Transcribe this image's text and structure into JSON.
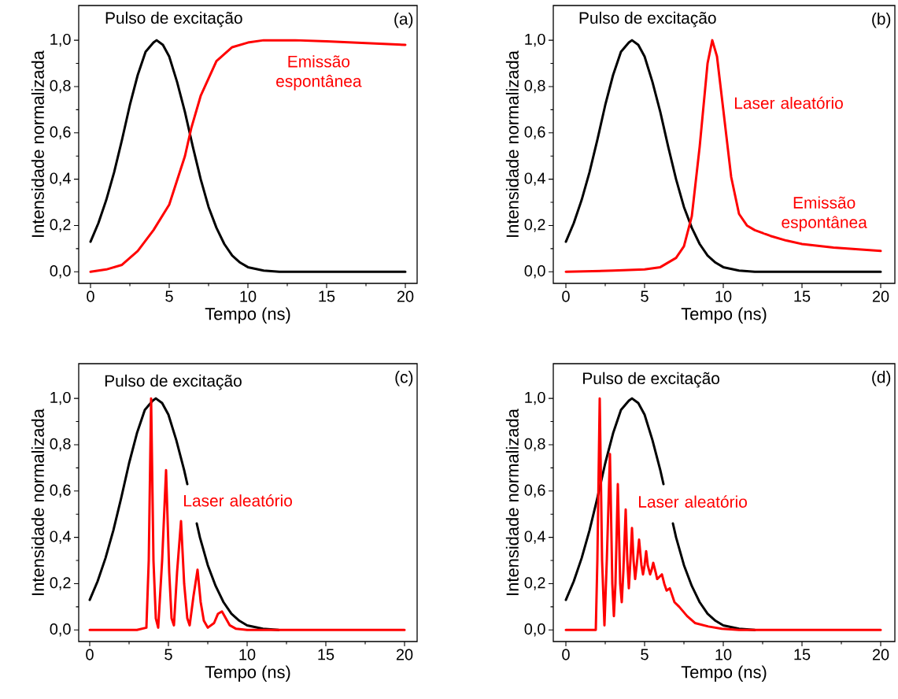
{
  "chart_data": [
    {
      "type": "line",
      "xlabel": "Tempo (ns)",
      "ylabel": "Intensidade normalizada",
      "xlim": [
        -0.75,
        20.75
      ],
      "ylim": [
        -0.05,
        1.15
      ],
      "xticks": [
        0,
        5,
        10,
        15,
        20
      ],
      "yticks": [
        {
          "value": 0,
          "label": "0,0"
        },
        {
          "value": 0.2,
          "label": "0,2"
        },
        {
          "value": 0.4,
          "label": "0,4"
        },
        {
          "value": 0.6,
          "label": "0,6"
        },
        {
          "value": 0.8,
          "label": "0,8"
        },
        {
          "value": 1.0,
          "label": "1,0"
        }
      ],
      "annotations": [
        "Pulso de excitação",
        "Emissão espontânea",
        "(a)"
      ],
      "series": [
        {
          "color": "#000000",
          "x": [
            0,
            0.5,
            1,
            1.5,
            2,
            2.5,
            3,
            3.5,
            4,
            4.2,
            4.6,
            5,
            5.5,
            6,
            6.5,
            7,
            7.5,
            8,
            8.5,
            9,
            9.5,
            10,
            11,
            12,
            14,
            17,
            20
          ],
          "values": [
            0.13,
            0.21,
            0.31,
            0.43,
            0.57,
            0.72,
            0.85,
            0.95,
            0.99,
            1.0,
            0.98,
            0.93,
            0.82,
            0.69,
            0.54,
            0.4,
            0.28,
            0.19,
            0.12,
            0.07,
            0.04,
            0.02,
            0.005,
            0,
            0,
            0,
            0
          ]
        },
        {
          "color": "#ff0000",
          "x": [
            0,
            1,
            2,
            3,
            4,
            5,
            6,
            6.4,
            7,
            8,
            9,
            10,
            11,
            13,
            15,
            20
          ],
          "values": [
            0,
            0.01,
            0.03,
            0.09,
            0.18,
            0.29,
            0.5,
            0.62,
            0.76,
            0.91,
            0.97,
            0.99,
            1.0,
            1.0,
            0.995,
            0.98
          ]
        }
      ]
    },
    {
      "type": "line",
      "xlabel": "Tempo (ns)",
      "ylabel": "Intensidade normalizada",
      "xlim": [
        -0.8,
        20.9
      ],
      "ylim": [
        -0.05,
        1.15
      ],
      "xticks": [
        0,
        5,
        10,
        15,
        20
      ],
      "yticks": [
        {
          "value": 0,
          "label": "0,0"
        },
        {
          "value": 0.2,
          "label": "0,2"
        },
        {
          "value": 0.4,
          "label": "0,4"
        },
        {
          "value": 0.6,
          "label": "0,6"
        },
        {
          "value": 0.8,
          "label": "0,8"
        },
        {
          "value": 1.0,
          "label": "1,0"
        }
      ],
      "annotations": [
        "Pulso de excitação",
        "Laser aleatório",
        "Emissão espontânea",
        "(b)"
      ],
      "series": [
        {
          "color": "#000000",
          "x": [
            0,
            0.5,
            1,
            1.5,
            2,
            2.5,
            3,
            3.5,
            4,
            4.2,
            4.6,
            5,
            5.5,
            6,
            6.5,
            7,
            7.5,
            8,
            8.5,
            9,
            9.5,
            10,
            11,
            12,
            14,
            17,
            20
          ],
          "values": [
            0.13,
            0.21,
            0.31,
            0.43,
            0.57,
            0.72,
            0.85,
            0.95,
            0.99,
            1.0,
            0.98,
            0.93,
            0.82,
            0.69,
            0.54,
            0.4,
            0.28,
            0.19,
            0.12,
            0.07,
            0.04,
            0.02,
            0.005,
            0,
            0,
            0,
            0
          ]
        },
        {
          "color": "#ff0000",
          "x": [
            0,
            3,
            5,
            6,
            7,
            7.5,
            8,
            8.5,
            9,
            9.3,
            9.6,
            10,
            10.5,
            11,
            11.5,
            12,
            13,
            14,
            15,
            17,
            20
          ],
          "values": [
            0,
            0.005,
            0.01,
            0.02,
            0.06,
            0.11,
            0.24,
            0.54,
            0.9,
            1.0,
            0.93,
            0.7,
            0.41,
            0.25,
            0.2,
            0.18,
            0.155,
            0.135,
            0.12,
            0.105,
            0.09
          ]
        }
      ]
    },
    {
      "type": "line",
      "xlabel": "Tempo (ns)",
      "ylabel": "Intensidade normalizada",
      "xlim": [
        -0.7,
        20.8
      ],
      "ylim": [
        -0.05,
        1.15
      ],
      "xticks": [
        0,
        5,
        10,
        15,
        20
      ],
      "yticks": [
        {
          "value": 0,
          "label": "0,0"
        },
        {
          "value": 0.2,
          "label": "0,2"
        },
        {
          "value": 0.4,
          "label": "0,4"
        },
        {
          "value": 0.6,
          "label": "0,6"
        },
        {
          "value": 0.8,
          "label": "0,8"
        },
        {
          "value": 1.0,
          "label": "1,0"
        }
      ],
      "annotations": [
        "Pulso de excitação",
        "Laser aleatório",
        "(c)"
      ],
      "series": [
        {
          "color": "#000000",
          "x": [
            0,
            0.5,
            1,
            1.5,
            2,
            2.5,
            3,
            3.5,
            4,
            4.2,
            4.6,
            5,
            5.5,
            6,
            6.2,
            6.5,
            6.8,
            7,
            7.5,
            8,
            8.5,
            9,
            9.5,
            10,
            11,
            12
          ],
          "values": [
            0.13,
            0.21,
            0.31,
            0.43,
            0.57,
            0.72,
            0.85,
            0.95,
            0.99,
            1.0,
            0.98,
            0.93,
            0.82,
            0.69,
            0.63,
            null,
            0.46,
            0.4,
            0.28,
            0.19,
            0.12,
            0.07,
            0.04,
            0.02,
            0.005,
            0
          ]
        },
        {
          "color": "#ff0000",
          "x": [
            0,
            3.0,
            3.6,
            3.75,
            3.9,
            4.05,
            4.2,
            4.35,
            4.6,
            4.85,
            5.05,
            5.2,
            5.35,
            5.55,
            5.8,
            6.0,
            6.2,
            6.35,
            6.6,
            6.85,
            7.05,
            7.25,
            7.5,
            7.9,
            8.15,
            8.4,
            8.65,
            8.9,
            9.3,
            10,
            20
          ],
          "values": [
            0,
            0,
            0.01,
            0.3,
            1.0,
            0.3,
            0.05,
            0.01,
            0.3,
            0.69,
            0.25,
            0.05,
            0.02,
            0.25,
            0.47,
            0.2,
            0.05,
            0.02,
            0.15,
            0.26,
            0.12,
            0.04,
            0.01,
            0.03,
            0.07,
            0.08,
            0.05,
            0.02,
            0.005,
            0,
            0
          ]
        }
      ]
    },
    {
      "type": "line",
      "xlabel": "Tempo (ns)",
      "ylabel": "Intensidade normalizada",
      "xlim": [
        -0.8,
        20.9
      ],
      "ylim": [
        -0.05,
        1.15
      ],
      "xticks": [
        0,
        5,
        10,
        15,
        20
      ],
      "yticks": [
        {
          "value": 0,
          "label": "0,0"
        },
        {
          "value": 0.2,
          "label": "0,2"
        },
        {
          "value": 0.4,
          "label": "0,4"
        },
        {
          "value": 0.6,
          "label": "0,6"
        },
        {
          "value": 0.8,
          "label": "0,8"
        },
        {
          "value": 1.0,
          "label": "1,0"
        }
      ],
      "annotations": [
        "Pulso de excitação",
        "Laser aleatório",
        "(d)"
      ],
      "series": [
        {
          "color": "#000000",
          "x": [
            0,
            0.5,
            1,
            1.5,
            2,
            2.5,
            3,
            3.5,
            4,
            4.2,
            4.6,
            5,
            5.5,
            6,
            6.2,
            6.5,
            6.8,
            7,
            7.5,
            8,
            8.5,
            9,
            9.5,
            10,
            11,
            12
          ],
          "values": [
            0.13,
            0.21,
            0.31,
            0.43,
            0.57,
            0.72,
            0.85,
            0.95,
            0.99,
            1.0,
            0.98,
            0.93,
            0.82,
            0.69,
            0.63,
            null,
            0.46,
            0.4,
            0.28,
            0.19,
            0.12,
            0.07,
            0.04,
            0.02,
            0.005,
            0
          ]
        },
        {
          "color": "#ff0000",
          "x": [
            0,
            1.9,
            2.0,
            2.15,
            2.3,
            2.45,
            2.6,
            2.8,
            2.95,
            3.05,
            3.15,
            3.3,
            3.45,
            3.55,
            3.65,
            3.8,
            3.9,
            4.0,
            4.1,
            4.2,
            4.3,
            4.4,
            4.5,
            4.65,
            4.8,
            4.9,
            5.0,
            5.1,
            5.2,
            5.35,
            5.45,
            5.55,
            5.7,
            5.8,
            5.95,
            6.1,
            6.25,
            6.4,
            6.6,
            6.9,
            7.2,
            7.7,
            8.2,
            9.05,
            9.9,
            11,
            20
          ],
          "values": [
            0,
            0,
            0.3,
            1.0,
            0.3,
            0.02,
            0.3,
            0.76,
            0.2,
            0.06,
            0.2,
            0.63,
            0.2,
            0.12,
            0.25,
            0.52,
            0.3,
            0.18,
            0.3,
            0.44,
            0.3,
            0.22,
            0.28,
            0.39,
            0.28,
            0.24,
            0.28,
            0.34,
            0.28,
            0.24,
            0.26,
            0.29,
            0.25,
            0.22,
            0.23,
            0.24,
            0.2,
            0.17,
            0.18,
            0.12,
            0.1,
            0.06,
            0.03,
            0.015,
            0.005,
            0,
            0
          ]
        }
      ]
    }
  ]
}
